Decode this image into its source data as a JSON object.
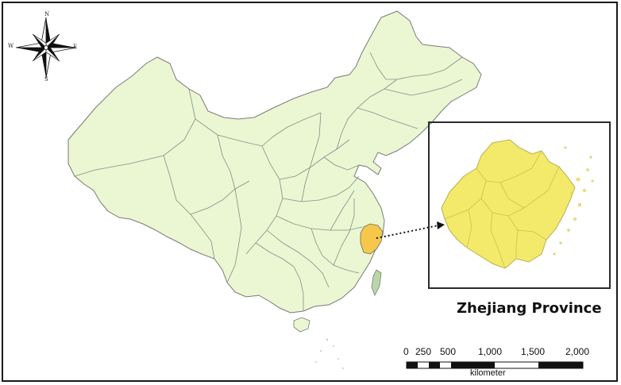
{
  "compass": {
    "north": "N",
    "south": "S",
    "west": "W",
    "east": "E"
  },
  "inset": {
    "title": "Zhejiang Province"
  },
  "scale_bar": {
    "labels": [
      "0",
      "250",
      "500",
      "1,000",
      "1,500",
      "2,000"
    ],
    "unit": "kilometer"
  },
  "colors": {
    "country_fill": "#eaf7d2",
    "border": "#7a7a7a",
    "highlight_province": "#f5c84a",
    "inset_fill": "#f3ea6b",
    "taiwan_fill": "#b9d7a6"
  },
  "icons": {
    "compass_rose": "compass-rose-icon",
    "pointer": "dotted-arrow"
  }
}
